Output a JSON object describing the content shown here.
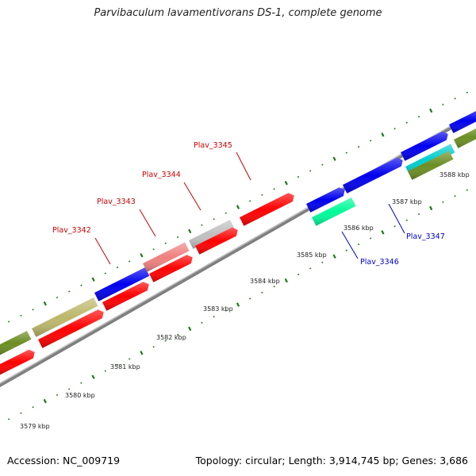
{
  "title": "Parvibaculum lavamentivorans DS-1, complete genome",
  "footer": {
    "accession": "Accession: NC_009719",
    "summary": "Topology: circular; Length: 3,914,745 bp; Genes: 3,686"
  },
  "colors": {
    "backbone": "#808080",
    "tick": "#1a7a1a",
    "forward_label": "#cc0000",
    "reverse_label": "#0000cc"
  },
  "scale_labels": [
    "3579 kbp",
    "3580 kbp",
    "3581 kbp",
    "3582 kbp",
    "3583 kbp",
    "3584 kbp",
    "3585 kbp",
    "3586 kbp",
    "3587 kbp",
    "3588 kbp"
  ],
  "gene_labels": [
    {
      "text": "Plav_3342",
      "strand": "forward"
    },
    {
      "text": "Plav_3343",
      "strand": "forward"
    },
    {
      "text": "Plav_3344",
      "strand": "forward"
    },
    {
      "text": "Plav_3345",
      "strand": "forward"
    },
    {
      "text": "Plav_3346",
      "strand": "reverse"
    },
    {
      "text": "Plav_3347",
      "strand": "reverse"
    }
  ],
  "features": [
    {
      "lane": "forward-outer",
      "color": "#6b8e23"
    },
    {
      "lane": "forward-outer",
      "color": "#bdb76b"
    },
    {
      "lane": "forward-outer",
      "color": "#0000ee"
    },
    {
      "lane": "forward-outer",
      "color": "#f08080"
    },
    {
      "lane": "forward-outer",
      "color": "#c0c0c0"
    },
    {
      "lane": "forward-outer",
      "color": "#ff0000"
    },
    {
      "lane": "forward-outer",
      "color": "#0000ee"
    },
    {
      "lane": "forward-outer",
      "color": "#0000ee"
    },
    {
      "lane": "forward-outer",
      "color": "#0000ee"
    },
    {
      "lane": "forward-inner",
      "color": "#ff0000"
    },
    {
      "lane": "forward-inner",
      "color": "#ff0000"
    },
    {
      "lane": "forward-inner",
      "color": "#ff0000"
    },
    {
      "lane": "forward-inner",
      "color": "#ff0000"
    },
    {
      "lane": "forward-inner",
      "color": "#ff0000"
    },
    {
      "lane": "forward-inner",
      "color": "#ff0000"
    },
    {
      "lane": "reverse",
      "color": "#00fa9a"
    },
    {
      "lane": "reverse",
      "color": "#00ced1"
    },
    {
      "lane": "reverse",
      "color": "#6b8e23"
    },
    {
      "lane": "reverse",
      "color": "#6b8e23"
    }
  ]
}
